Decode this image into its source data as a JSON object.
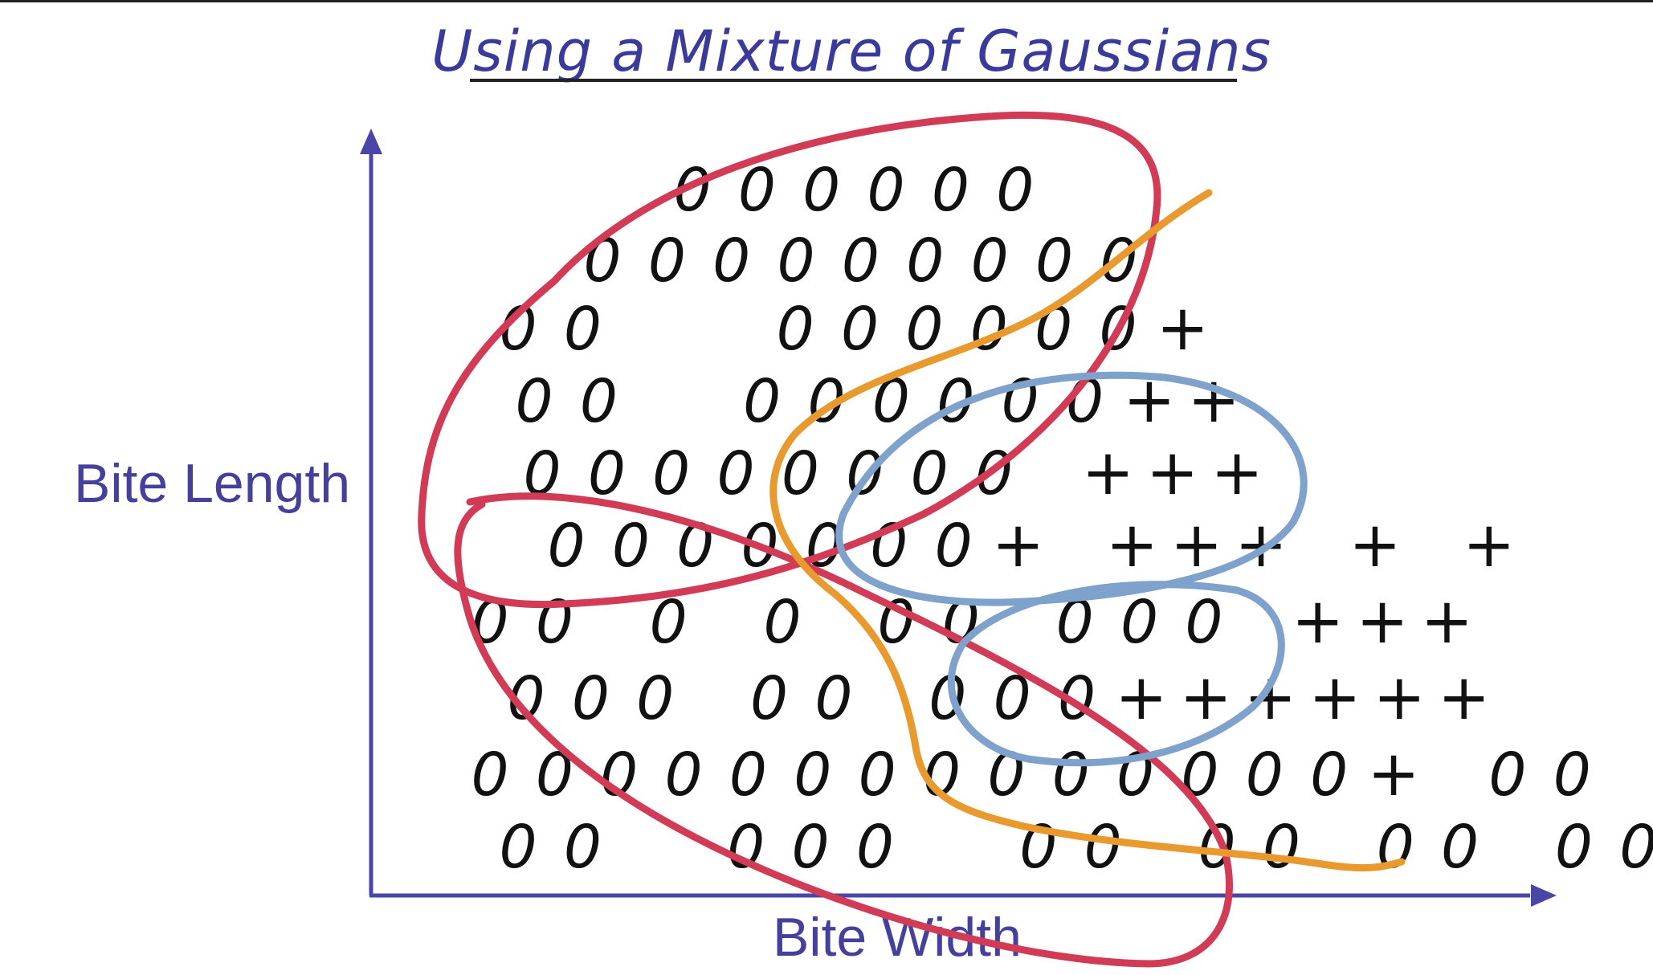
{
  "title": "Using a Mixture of Gaussians",
  "axes": {
    "y_label": "Bite Length",
    "x_label": "Bite Width"
  },
  "marker_symbols": {
    "class_a": "O",
    "class_b": "+"
  },
  "colors": {
    "axis": "#4a46a8",
    "title": "#3a3a9a",
    "red_gaussians": "#d23b55",
    "blue_gaussians": "#7fa2cc",
    "orange_boundary": "#e89a2e",
    "marks": "#111111"
  },
  "rows": [
    "000000",
    "000000000",
    "00   000000+",
    "00  000000++",
    "00000000 +++",
    "0000000+ +++ + +",
    "00 0 0 00 000 +++",
    "000 00 000++++++",
    "00000000000000+ 00",
    "00  000  00 00 00 00"
  ]
}
